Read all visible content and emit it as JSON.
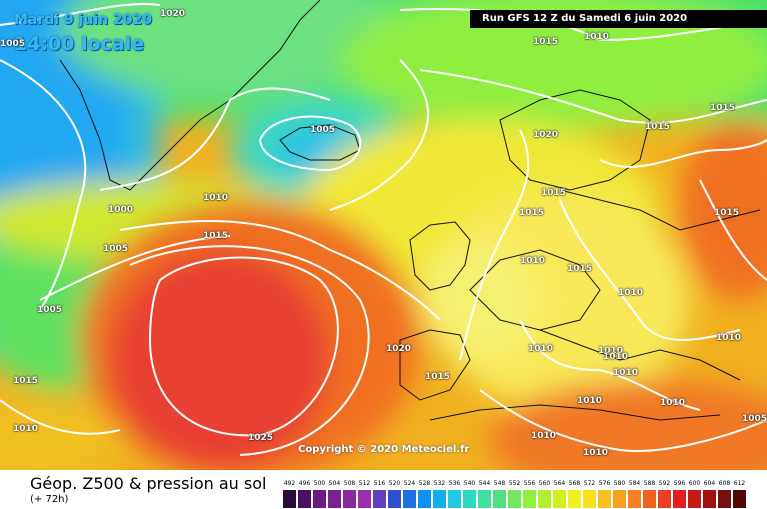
{
  "header": {
    "date": "Mardi 9 juin 2020",
    "time": "14:00 locale",
    "run": "Run GFS 12 Z du Samedi 6 juin 2020"
  },
  "copyright": "Copyright © 2020 Meteociel.fr",
  "footer": {
    "title": "Géop. Z500 & pression au sol",
    "subtitle": "(+ 72h)"
  },
  "legend": {
    "values": [
      "492",
      "496",
      "500",
      "504",
      "508",
      "512",
      "516",
      "520",
      "524",
      "528",
      "532",
      "536",
      "540",
      "544",
      "548",
      "552",
      "556",
      "560",
      "564",
      "568",
      "572",
      "576",
      "580",
      "584",
      "588",
      "592",
      "596",
      "600",
      "604",
      "608",
      "612"
    ],
    "colors": [
      "#2a0a3a",
      "#4a1060",
      "#6a1a80",
      "#7a2090",
      "#8a28a0",
      "#9a30b0",
      "#6040c0",
      "#3050d0",
      "#2070e0",
      "#1090f0",
      "#10b0f0",
      "#20c8e0",
      "#30d8c0",
      "#40e0a0",
      "#50e080",
      "#70e860",
      "#90f040",
      "#b0f030",
      "#d0f020",
      "#f0f020",
      "#f8e020",
      "#f8c020",
      "#f8a020",
      "#f88020",
      "#f06020",
      "#e84020",
      "#e02020",
      "#c81818",
      "#a01010",
      "#781010",
      "#500808"
    ]
  },
  "isobar_labels": [
    {
      "id": "l1020a",
      "text": "1020"
    },
    {
      "id": "l1015a",
      "text": "1015"
    },
    {
      "id": "l1010a",
      "text": "1010"
    },
    {
      "id": "l1005a",
      "text": "1005"
    },
    {
      "id": "l1015b",
      "text": "1015"
    },
    {
      "id": "l1015c",
      "text": "1015"
    },
    {
      "id": "l1020b",
      "text": "1020"
    },
    {
      "id": "l1000a",
      "text": "1000"
    },
    {
      "id": "l1010b",
      "text": "1010"
    },
    {
      "id": "l1015d",
      "text": "1015"
    },
    {
      "id": "l1015e",
      "text": "1015"
    },
    {
      "id": "l1015f",
      "text": "1015"
    },
    {
      "id": "l1005b",
      "text": "1005"
    },
    {
      "id": "l1015g",
      "text": "1015"
    },
    {
      "id": "l1005c",
      "text": "1005"
    },
    {
      "id": "l1015h",
      "text": "1015"
    },
    {
      "id": "l1010c",
      "text": "1010"
    },
    {
      "id": "l1010d",
      "text": "1010"
    },
    {
      "id": "l1020c",
      "text": "1020"
    },
    {
      "id": "l1010e",
      "text": "1010"
    },
    {
      "id": "l1010f",
      "text": "1010"
    },
    {
      "id": "l1015i",
      "text": "1015"
    },
    {
      "id": "l1010g",
      "text": "1010"
    },
    {
      "id": "l1010h",
      "text": "1010"
    },
    {
      "id": "l1025a",
      "text": "1025"
    },
    {
      "id": "l1010i",
      "text": "1010"
    },
    {
      "id": "l1010j",
      "text": "1010"
    },
    {
      "id": "l1010k",
      "text": "1010"
    },
    {
      "id": "l1005d",
      "text": "1005"
    },
    {
      "id": "l1015j",
      "text": "1015"
    },
    {
      "id": "l1010l",
      "text": "1010"
    },
    {
      "id": "l1005e",
      "text": "1005"
    },
    {
      "id": "l1010m",
      "text": "1010"
    },
    {
      "id": "l1010n",
      "text": "1010"
    }
  ]
}
